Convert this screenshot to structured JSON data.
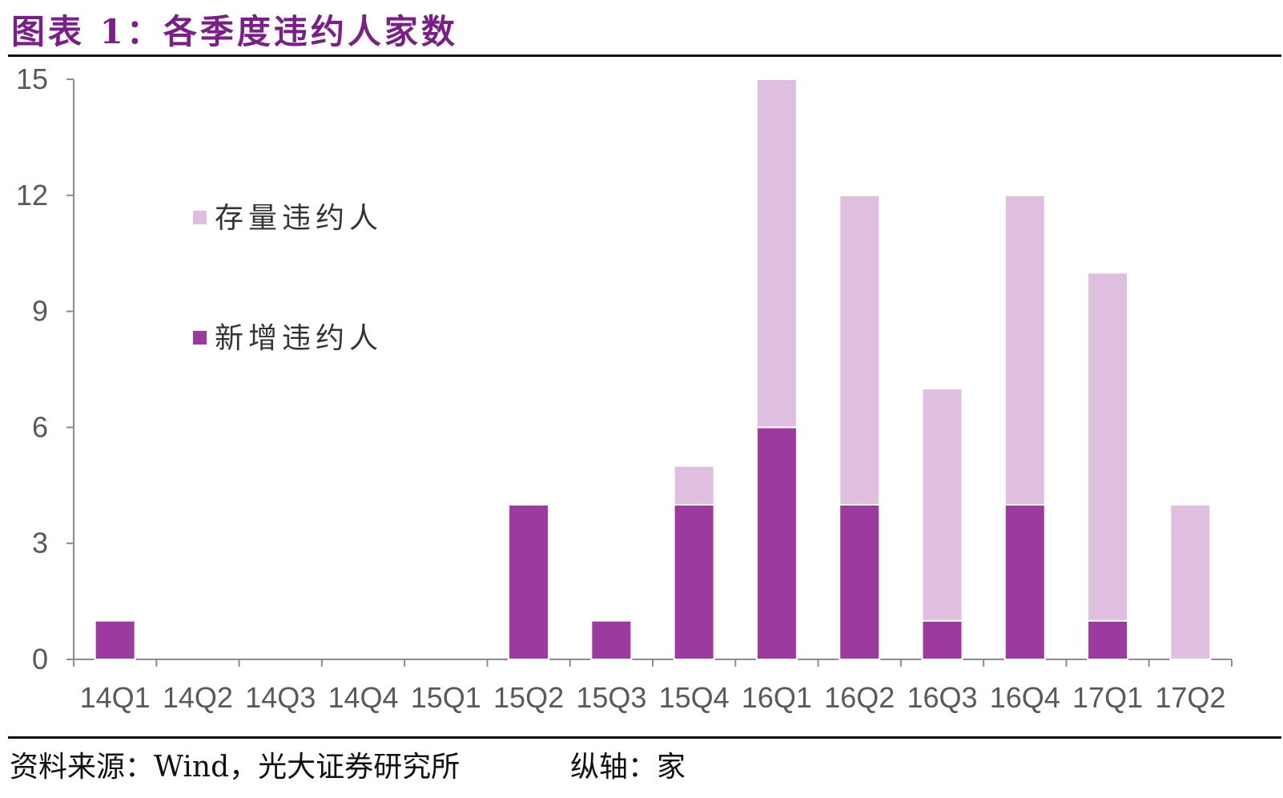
{
  "header": {
    "title": "图表 1：各季度违约人家数"
  },
  "footer": {
    "source": "资料来源：Wind，光大证券研究所",
    "unit": "纵轴：家"
  },
  "chart_data": {
    "type": "bar",
    "stacked": true,
    "title": "图表 1：各季度违约人家数",
    "xlabel": "",
    "ylabel": "",
    "ylim": [
      0,
      15
    ],
    "yticks": [
      0,
      3,
      6,
      9,
      12,
      15
    ],
    "grid": false,
    "legend": "top-left",
    "categories": [
      "14Q1",
      "14Q2",
      "14Q3",
      "14Q4",
      "15Q1",
      "15Q2",
      "15Q3",
      "15Q4",
      "16Q1",
      "16Q2",
      "16Q3",
      "16Q4",
      "17Q1",
      "17Q2"
    ],
    "series": [
      {
        "name": "新增违约人",
        "color": "#9c3a9f",
        "values": [
          1,
          0,
          0,
          0,
          0,
          4,
          1,
          4,
          6,
          4,
          1,
          4,
          1,
          0
        ]
      },
      {
        "name": "存量违约人",
        "color": "#dfbfdf",
        "values": [
          0,
          0,
          0,
          0,
          0,
          0,
          0,
          1,
          9,
          8,
          6,
          8,
          9,
          4
        ]
      }
    ],
    "legend_order": [
      "存量违约人",
      "新增违约人"
    ]
  }
}
